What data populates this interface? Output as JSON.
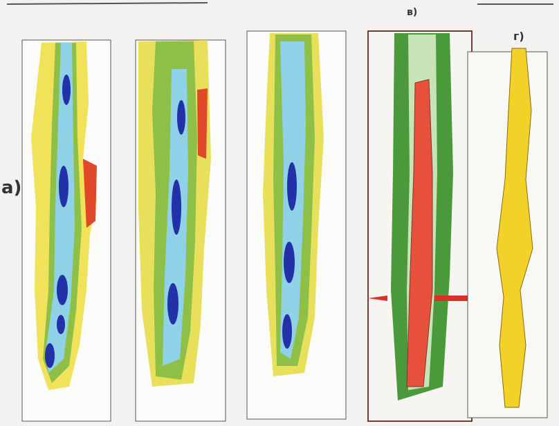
{
  "labels": {
    "a": "а)",
    "v": "в)",
    "g": "г)"
  }
}
